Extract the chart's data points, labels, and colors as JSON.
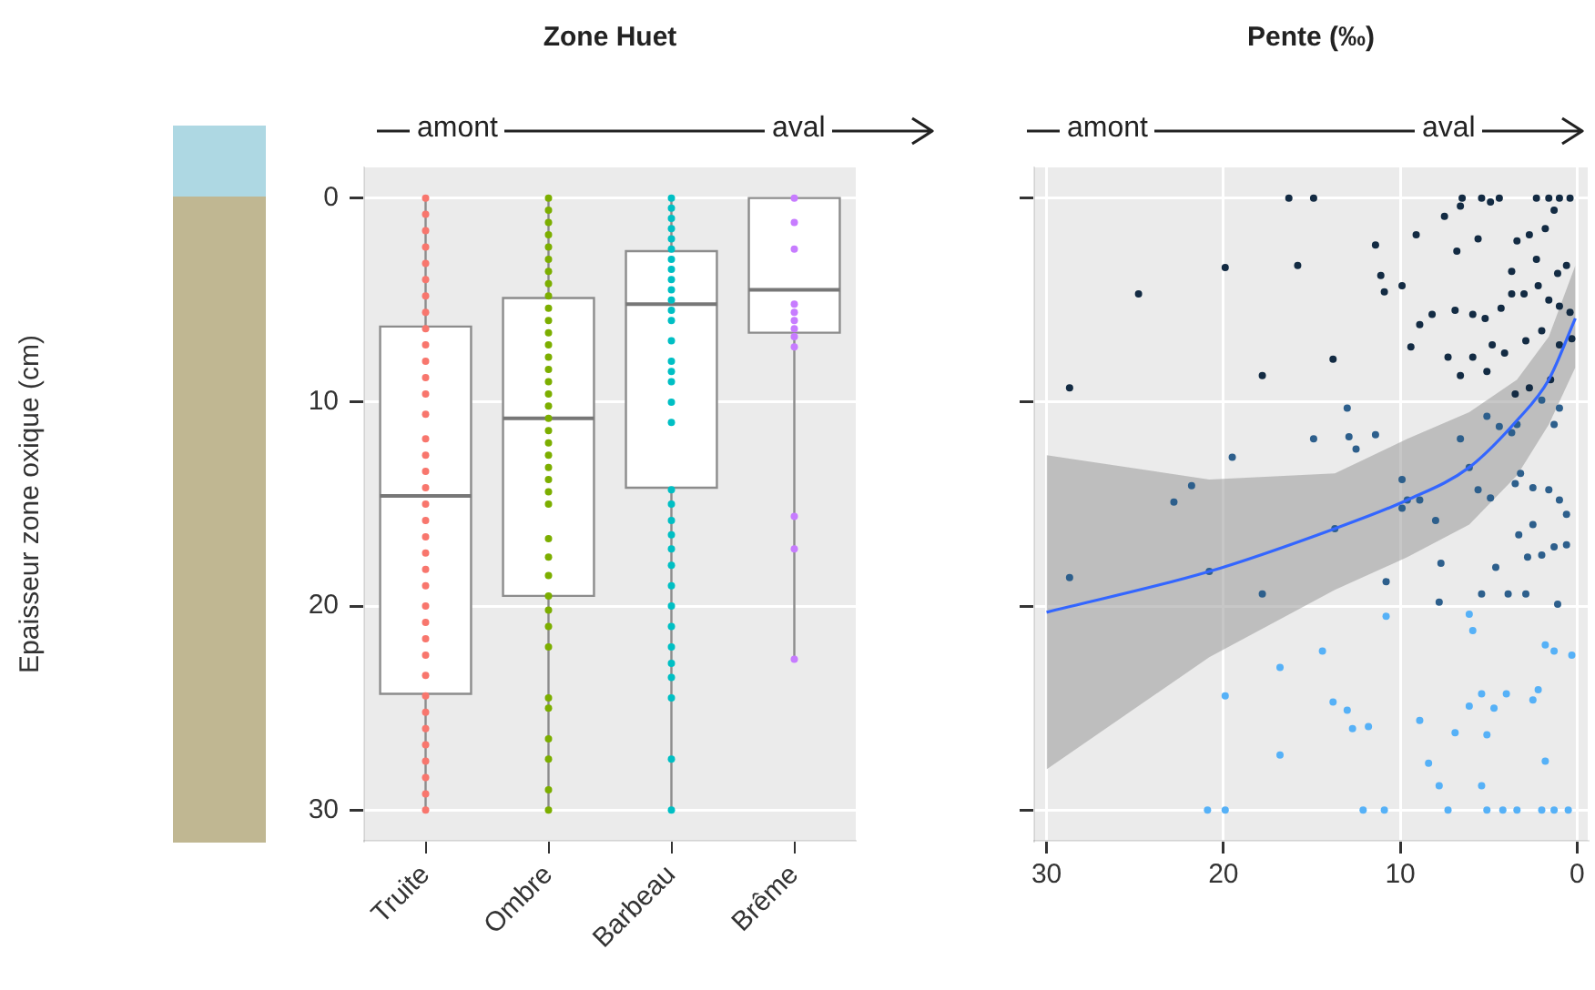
{
  "chart_data": [
    {
      "type": "box",
      "title": "Zone Huet",
      "ylabel": "Epaisseur zone oxique (cm)",
      "annotations": [
        "amont",
        "aval"
      ],
      "categories": [
        "Truite",
        "Ombre",
        "Barbeau",
        "Brême"
      ],
      "boxes": [
        {
          "low": 0,
          "q1": 6.3,
          "median": 14.6,
          "q3": 24.3,
          "high": 30
        },
        {
          "low": 0,
          "q1": 4.9,
          "median": 10.8,
          "q3": 19.5,
          "high": 30
        },
        {
          "low": 0,
          "q1": 2.6,
          "median": 5.2,
          "q3": 14.2,
          "high": 30
        },
        {
          "low": 0,
          "q1": 0,
          "median": 4.5,
          "q3": 6.6,
          "high": 22.6
        }
      ],
      "series": [
        {
          "type": "scatter",
          "color": "#f8766d",
          "x": [
            "Truite",
            "Truite",
            "Truite",
            "Truite",
            "Truite",
            "Truite",
            "Truite",
            "Truite",
            "Truite",
            "Truite",
            "Truite",
            "Truite",
            "Truite",
            "Truite",
            "Truite",
            "Truite",
            "Truite",
            "Truite",
            "Truite",
            "Truite",
            "Truite",
            "Truite",
            "Truite",
            "Truite",
            "Truite",
            "Truite",
            "Truite",
            "Truite",
            "Truite",
            "Truite",
            "Truite",
            "Truite",
            "Truite",
            "Truite",
            "Truite",
            "Truite",
            "Truite"
          ],
          "values": [
            0,
            0.8,
            1.6,
            2.4,
            3.2,
            4,
            4.8,
            5.6,
            6.4,
            7.2,
            8,
            8.8,
            9.6,
            10.6,
            11.8,
            12.6,
            13.4,
            14.2,
            15,
            15.8,
            16.6,
            17.4,
            18.2,
            19,
            20,
            20.8,
            21.6,
            22.4,
            23.4,
            24.4,
            25.2,
            26,
            26.8,
            27.6,
            28.4,
            29.2,
            30
          ]
        },
        {
          "type": "scatter",
          "color": "#7cae00",
          "x": [
            "Ombre",
            "Ombre",
            "Ombre",
            "Ombre",
            "Ombre",
            "Ombre",
            "Ombre",
            "Ombre",
            "Ombre",
            "Ombre",
            "Ombre",
            "Ombre",
            "Ombre",
            "Ombre",
            "Ombre",
            "Ombre",
            "Ombre",
            "Ombre",
            "Ombre",
            "Ombre",
            "Ombre",
            "Ombre",
            "Ombre",
            "Ombre",
            "Ombre",
            "Ombre",
            "Ombre",
            "Ombre",
            "Ombre",
            "Ombre",
            "Ombre",
            "Ombre",
            "Ombre",
            "Ombre",
            "Ombre",
            "Ombre",
            "Ombre",
            "Ombre",
            "Ombre"
          ],
          "values": [
            0,
            0.6,
            1.2,
            1.8,
            2.4,
            3,
            3.6,
            4.2,
            4.8,
            5.4,
            6,
            6.6,
            7.2,
            7.8,
            8.4,
            9,
            9.6,
            10.2,
            10.8,
            11.4,
            12,
            12.6,
            13.2,
            13.8,
            14.4,
            15,
            16.7,
            17.6,
            18.5,
            19.5,
            20.2,
            21,
            22,
            24.5,
            25,
            26.5,
            27.5,
            29,
            30
          ]
        },
        {
          "type": "scatter",
          "color": "#00bfc4",
          "x": [
            "Barbeau",
            "Barbeau",
            "Barbeau",
            "Barbeau",
            "Barbeau",
            "Barbeau",
            "Barbeau",
            "Barbeau",
            "Barbeau",
            "Barbeau",
            "Barbeau",
            "Barbeau",
            "Barbeau",
            "Barbeau",
            "Barbeau",
            "Barbeau",
            "Barbeau",
            "Barbeau",
            "Barbeau",
            "Barbeau",
            "Barbeau",
            "Barbeau",
            "Barbeau",
            "Barbeau",
            "Barbeau",
            "Barbeau",
            "Barbeau",
            "Barbeau",
            "Barbeau",
            "Barbeau",
            "Barbeau",
            "Barbeau",
            "Barbeau",
            "Barbeau"
          ],
          "values": [
            0,
            0.5,
            1,
            1.5,
            2,
            2.5,
            3,
            3.5,
            4,
            4.5,
            5,
            5.5,
            6,
            7,
            8,
            8.5,
            9,
            10,
            11,
            14.3,
            15,
            15.8,
            16.5,
            17.2,
            18,
            19,
            20,
            21,
            22,
            22.8,
            23.5,
            24.5,
            27.5,
            30
          ]
        },
        {
          "type": "scatter",
          "color": "#c77cff",
          "x": [
            "Brême",
            "Brême",
            "Brême",
            "Brême",
            "Brême",
            "Brême",
            "Brême",
            "Brême",
            "Brême",
            "Brême",
            "Brême",
            "Brême"
          ],
          "values": [
            0,
            1.2,
            2.5,
            5.2,
            5.6,
            6,
            6.4,
            6.8,
            7.3,
            15.6,
            17.2,
            22.6
          ]
        }
      ],
      "ylim": [
        31.5,
        -1.5
      ],
      "yticks": [
        0,
        10,
        20,
        30
      ],
      "grid": "y",
      "marker": "circle"
    },
    {
      "type": "scatter",
      "title": "Pente (‰)",
      "annotations": [
        "amont",
        "aval"
      ],
      "series": [
        {
          "color": "#132b43",
          "x": [
            16.3,
            14.9,
            6.5,
            5.4,
            4.4,
            2.3,
            1.6,
            1.0,
            0.4,
            19.9,
            15.8,
            24.8,
            11.4,
            9.1,
            11.1,
            9.9,
            10.9,
            7.5,
            6.6,
            4.9,
            6.8,
            5.6,
            3.4,
            2.7,
            1.8,
            1.3,
            0.6,
            3.7,
            2.3,
            1.1,
            8.9,
            8.2,
            6.9,
            5.9,
            5.2,
            4.3,
            3.7,
            3.0,
            2.2,
            1.6,
            1.0,
            0.4,
            13.8,
            17.8,
            9.4,
            7.3,
            5.9,
            4.8,
            4.1,
            2.9,
            2.0,
            1.0,
            0.3,
            6.6,
            5.1,
            28.7,
            3.5,
            2.7,
            1.5
          ],
          "values": [
            0,
            0,
            0,
            0,
            0,
            0,
            0,
            0,
            0,
            3.4,
            3.3,
            4.7,
            2.3,
            1.8,
            3.8,
            4.3,
            4.6,
            0.9,
            0.4,
            0.2,
            2.6,
            2.0,
            2.1,
            1.8,
            1.5,
            0.6,
            3.3,
            3.6,
            3.0,
            3.7,
            6.2,
            5.7,
            5.5,
            5.7,
            5.9,
            5.4,
            4.7,
            4.7,
            4.3,
            5.0,
            5.3,
            5.6,
            7.9,
            8.7,
            7.3,
            7.8,
            7.8,
            7.2,
            7.6,
            7.0,
            6.5,
            7.2,
            6.9,
            8.7,
            8.5,
            9.3,
            9.6,
            9.3,
            8.9
          ]
        },
        {
          "color": "#2d5f8c",
          "x": [
            13.0,
            1.0,
            2.0,
            14.9,
            12.9,
            12.5,
            11.4,
            6.6,
            5.1,
            4.4,
            3.7,
            3.4,
            1.3,
            19.5,
            21.8,
            22.8,
            9.9,
            9.9,
            9.6,
            8.9,
            8.0,
            6.1,
            5.6,
            4.9,
            3.5,
            3.2,
            2.5,
            1.6,
            1.0,
            0.6,
            13.7,
            3.3,
            2.5,
            2.8,
            2.0,
            1.3,
            0.6,
            7.7,
            4.6,
            28.7,
            20.8,
            17.8,
            10.8,
            7.8,
            5.4,
            3.9,
            2.9,
            1.1
          ],
          "values": [
            10.3,
            10.3,
            9.9,
            11.8,
            11.7,
            12.3,
            11.6,
            11.8,
            10.7,
            11.2,
            11.5,
            11.1,
            11.1,
            12.7,
            14.1,
            14.9,
            13.8,
            15.2,
            14.8,
            14.8,
            15.8,
            13.2,
            14.3,
            14.7,
            14.0,
            13.5,
            14.2,
            14.3,
            14.8,
            15.5,
            16.2,
            16.5,
            16.0,
            17.6,
            17.5,
            17.1,
            17.0,
            17.9,
            18.1,
            18.6,
            18.3,
            19.4,
            18.8,
            19.8,
            19.4,
            19.4,
            19.4,
            19.9
          ]
        },
        {
          "color": "#56b1f7",
          "x": [
            10.8,
            6.1,
            5.9,
            1.8,
            1.3,
            0.3,
            14.4,
            16.8,
            19.9,
            13.8,
            13.0,
            12.7,
            11.8,
            8.9,
            6.1,
            5.4,
            4.7,
            4.0,
            2.5,
            2.2,
            6.9,
            5.1,
            16.8,
            8.4,
            7.8,
            5.4,
            1.8,
            20.9,
            19.9,
            12.1,
            10.9,
            7.3,
            5.1,
            4.2,
            3.4,
            2.0,
            1.3,
            0.5
          ],
          "values": [
            20.5,
            20.4,
            21.2,
            21.9,
            22.2,
            22.4,
            22.2,
            23.0,
            24.4,
            24.7,
            25.1,
            26.0,
            25.9,
            25.6,
            24.9,
            24.3,
            25.0,
            24.3,
            24.6,
            24.1,
            26.2,
            26.3,
            27.3,
            27.7,
            28.8,
            28.8,
            27.6,
            30,
            30,
            30,
            30,
            30,
            30,
            30,
            30,
            30,
            30,
            30
          ]
        },
        {
          "type": "line",
          "marker": "none",
          "color": "#3366ff",
          "x": [
            30,
            20.8,
            13.7,
            9.6,
            6.1,
            3.4,
            1.6,
            0.1
          ],
          "values": [
            20.3,
            18.3,
            16.2,
            14.8,
            13.2,
            10.9,
            8.9,
            5.9
          ],
          "lower": [
            12.6,
            13.8,
            13.5,
            11.8,
            10.5,
            8.9,
            6.8,
            3.3
          ],
          "upper": [
            28.0,
            22.5,
            19.2,
            17.6,
            16.0,
            13.6,
            11.1,
            8.3
          ]
        }
      ],
      "xlim": [
        30.7,
        -0.6
      ],
      "xticks": [
        30,
        20,
        10,
        0
      ],
      "ylim": [
        31.5,
        -1.5
      ],
      "yticks": [
        0,
        10,
        20,
        30
      ],
      "tick_labels": "x",
      "grid": true,
      "marker": "circle"
    }
  ]
}
